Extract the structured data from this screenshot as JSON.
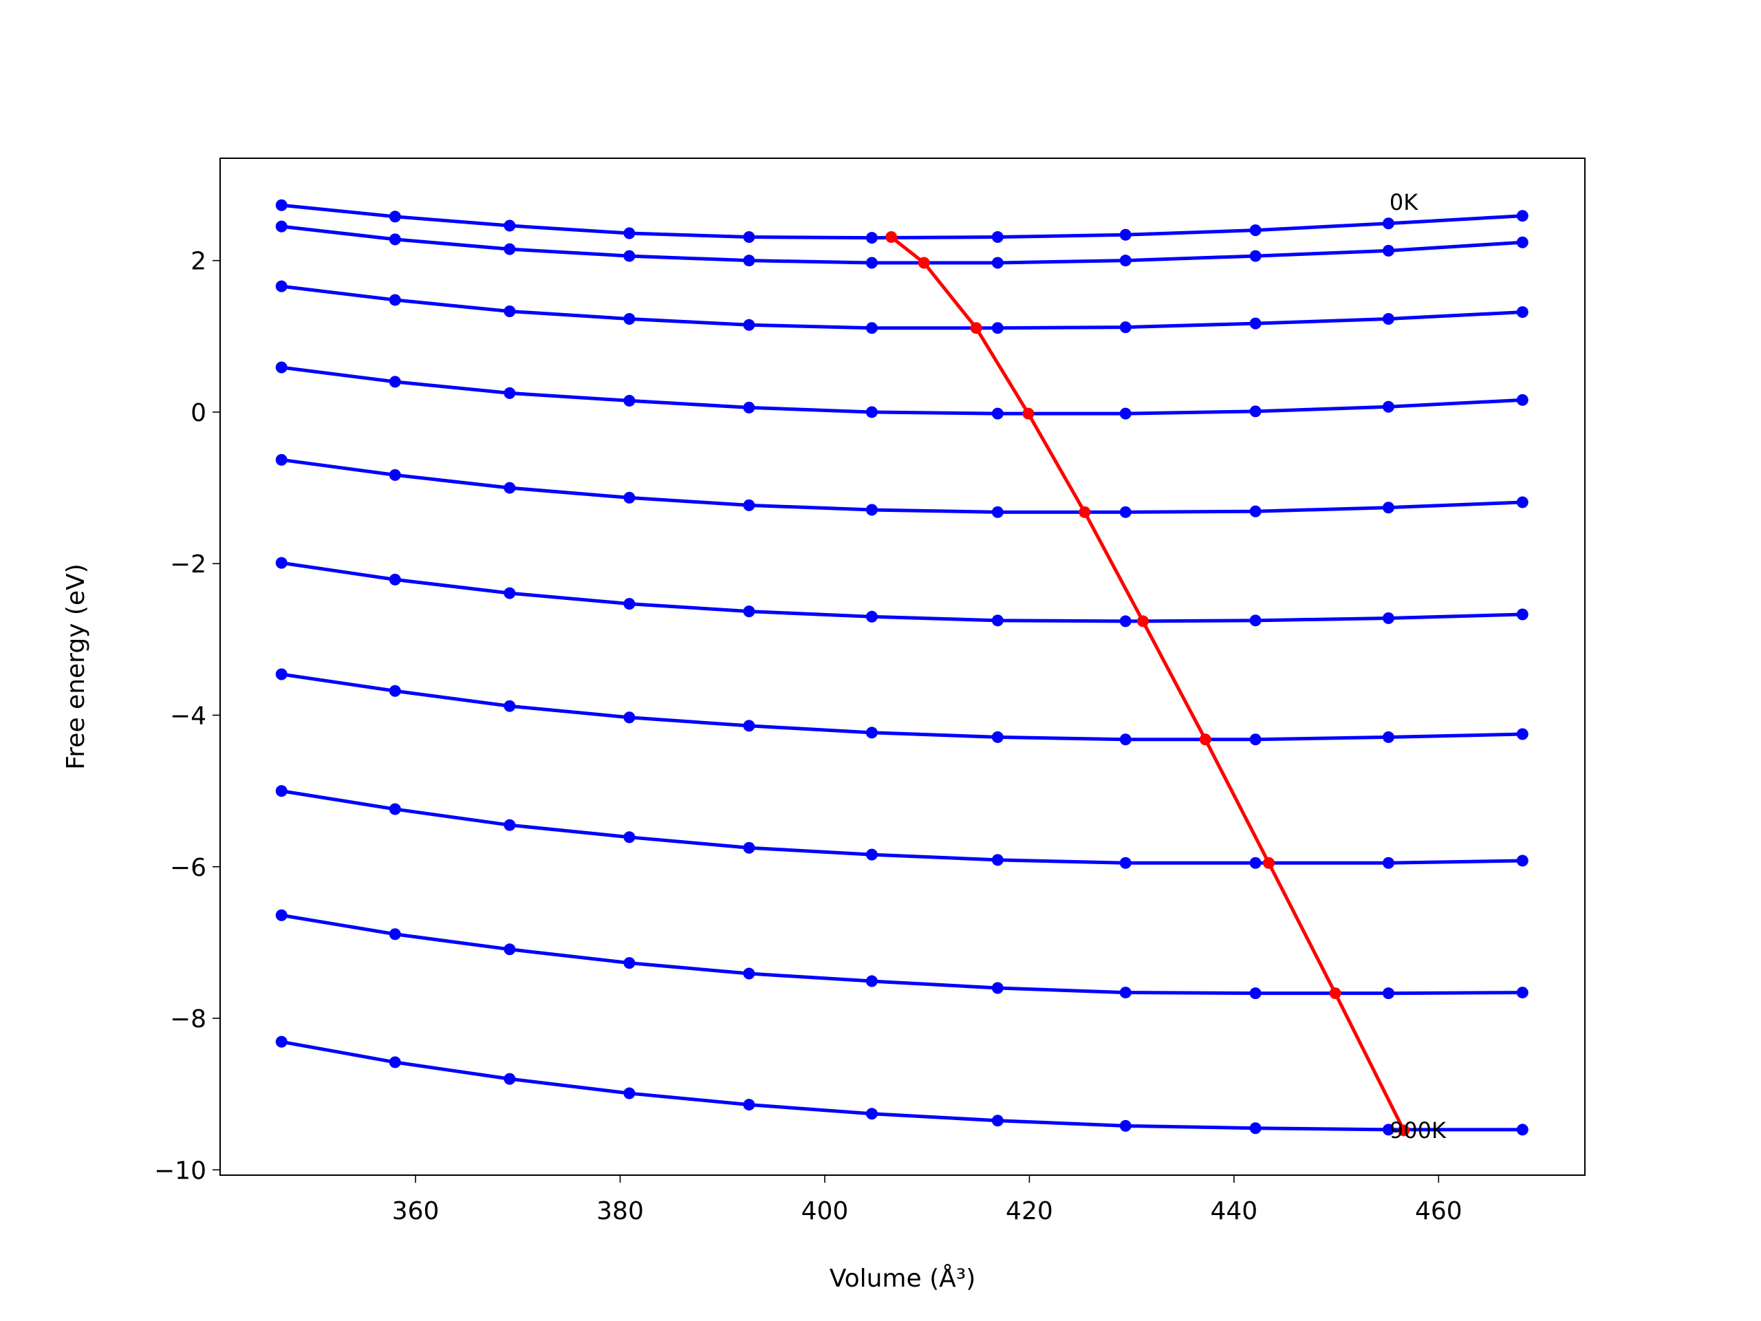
{
  "chart_data": {
    "type": "line",
    "x_label": "Volume (Å³)",
    "y_label": "Free energy (eV)",
    "xlim": [
      340.9,
      474.3
    ],
    "ylim": [
      -10.07,
      3.35
    ],
    "xticks": [
      360,
      380,
      400,
      420,
      440,
      460
    ],
    "yticks": [
      {
        "value": -10,
        "label": "−10"
      },
      {
        "value": -8,
        "label": "−8"
      },
      {
        "value": -6,
        "label": "−6"
      },
      {
        "value": -4,
        "label": "−4"
      },
      {
        "value": -2,
        "label": "−2"
      },
      0,
      2
    ],
    "x": [
      346.9,
      358.0,
      369.2,
      380.9,
      392.6,
      404.6,
      416.9,
      429.4,
      442.1,
      455.1,
      468.2
    ],
    "series": [
      {
        "color": "#0000ff",
        "values": [
          2.73,
          2.58,
          2.46,
          2.36,
          2.31,
          2.3,
          2.31,
          2.34,
          2.4,
          2.49,
          2.59
        ]
      },
      {
        "color": "#0000ff",
        "values": [
          2.45,
          2.28,
          2.15,
          2.06,
          2.0,
          1.97,
          1.97,
          2.0,
          2.06,
          2.13,
          2.24
        ]
      },
      {
        "color": "#0000ff",
        "values": [
          1.66,
          1.48,
          1.33,
          1.23,
          1.15,
          1.11,
          1.11,
          1.12,
          1.17,
          1.23,
          1.32
        ]
      },
      {
        "color": "#0000ff",
        "values": [
          0.59,
          0.4,
          0.25,
          0.15,
          0.06,
          0.0,
          -0.02,
          -0.02,
          0.01,
          0.07,
          0.16
        ]
      },
      {
        "color": "#0000ff",
        "values": [
          -0.63,
          -0.83,
          -1.0,
          -1.13,
          -1.23,
          -1.29,
          -1.32,
          -1.32,
          -1.31,
          -1.26,
          -1.19
        ]
      },
      {
        "color": "#0000ff",
        "values": [
          -1.99,
          -2.21,
          -2.39,
          -2.53,
          -2.63,
          -2.7,
          -2.75,
          -2.76,
          -2.75,
          -2.72,
          -2.67
        ]
      },
      {
        "color": "#0000ff",
        "values": [
          -3.46,
          -3.68,
          -3.88,
          -4.03,
          -4.14,
          -4.23,
          -4.29,
          -4.32,
          -4.32,
          -4.29,
          -4.25
        ]
      },
      {
        "color": "#0000ff",
        "values": [
          -5.0,
          -5.24,
          -5.45,
          -5.61,
          -5.75,
          -5.84,
          -5.91,
          -5.95,
          -5.95,
          -5.95,
          -5.92
        ]
      },
      {
        "color": "#0000ff",
        "values": [
          -6.64,
          -6.89,
          -7.09,
          -7.27,
          -7.41,
          -7.51,
          -7.6,
          -7.66,
          -7.67,
          -7.67,
          -7.66
        ]
      },
      {
        "color": "#0000ff",
        "values": [
          -8.31,
          -8.58,
          -8.8,
          -8.99,
          -9.14,
          -9.26,
          -9.35,
          -9.42,
          -9.45,
          -9.47,
          -9.47
        ]
      },
      {
        "color": "#ff0000",
        "x": [
          406.5,
          409.7,
          414.8,
          419.9,
          425.4,
          431.1,
          437.2,
          443.4,
          449.9,
          456.6
        ],
        "values": [
          2.31,
          1.97,
          1.11,
          -0.02,
          -1.32,
          -2.76,
          -4.32,
          -5.95,
          -7.67,
          -9.48
        ]
      }
    ],
    "annotations": [
      {
        "text": "0K",
        "x": 455.2,
        "y": 2.77
      },
      {
        "text": "900K",
        "x": 455.2,
        "y": -9.48
      }
    ]
  }
}
